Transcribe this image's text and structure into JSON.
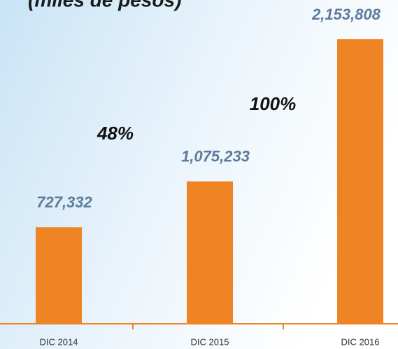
{
  "chart_data": {
    "type": "bar",
    "title": "(miles de pesos)",
    "categories": [
      "DIC 2014",
      "DIC 2015",
      "DIC 2016"
    ],
    "values": [
      727332,
      1075233,
      2153808
    ],
    "value_labels": [
      "727,332",
      "1,075,233",
      "2,153,808"
    ],
    "color": "#ee8424",
    "annotations": [
      "48%",
      "100%"
    ]
  }
}
